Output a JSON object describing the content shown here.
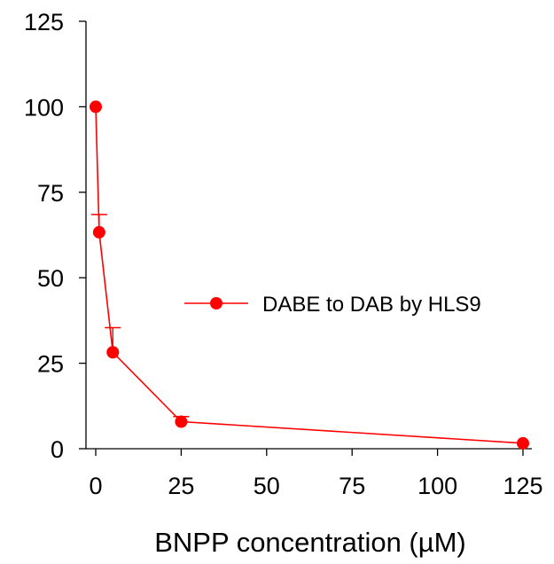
{
  "chart_data": {
    "type": "line",
    "title": "",
    "xlabel": "BNPP concentration (µM)",
    "ylabel": "",
    "xlim": [
      0,
      125
    ],
    "ylim": [
      0,
      125
    ],
    "x_ticks": [
      0,
      25,
      50,
      75,
      100,
      125
    ],
    "y_ticks": [
      0,
      25,
      50,
      75,
      100,
      125
    ],
    "x_tick_labels": [
      "0",
      "25",
      "50",
      "75",
      "100",
      "125"
    ],
    "y_tick_labels": [
      "0",
      "25",
      "50",
      "75",
      "100",
      "125"
    ],
    "grid": false,
    "legend_position": "right-middle",
    "series": [
      {
        "name": "DABE to DAB by HLS9",
        "color": "#ff0000",
        "marker": "circle",
        "x": [
          0,
          1,
          5,
          25,
          125
        ],
        "y": [
          100,
          63.3,
          28.2,
          7.9,
          1.6
        ],
        "error_upper": [
          0,
          5.2,
          7.2,
          1.5,
          0
        ]
      }
    ]
  }
}
